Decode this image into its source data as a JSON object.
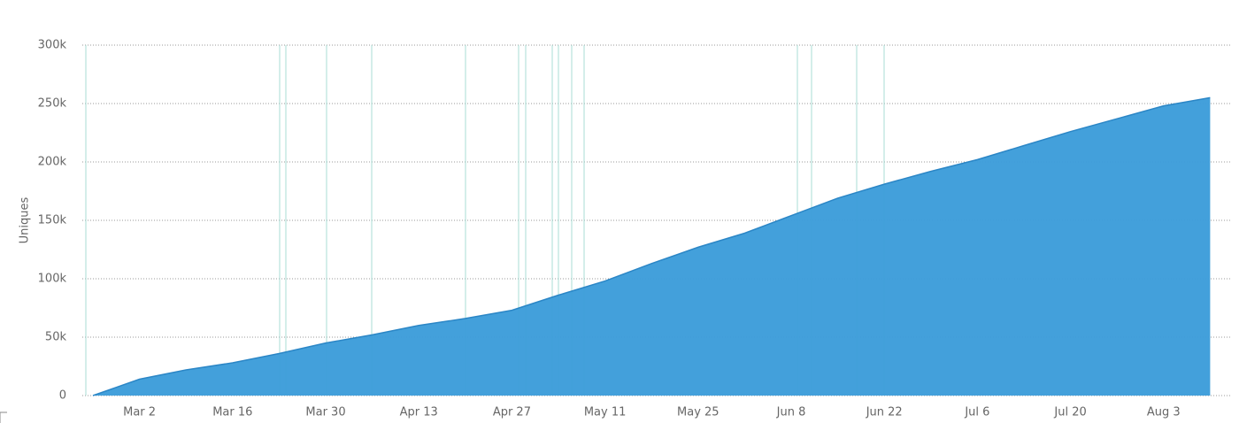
{
  "chart_data": {
    "type": "area",
    "y_label": "Uniques",
    "categories": [
      null,
      "Mar 2",
      null,
      "Mar 16",
      null,
      "Mar 30",
      null,
      "Apr 13",
      null,
      "Apr 27",
      null,
      "May 11",
      null,
      "May 25",
      null,
      "Jun 8",
      null,
      "Jun 22",
      null,
      "Jul 6",
      null,
      "Jul 20",
      null,
      "Aug 3",
      null
    ],
    "values": [
      0,
      14000,
      22000,
      28000,
      36000,
      45000,
      52000,
      60000,
      66000,
      73000,
      86000,
      98000,
      113000,
      127000,
      139000,
      154000,
      169000,
      181000,
      192000,
      202000,
      214000,
      226000,
      237000,
      248000,
      255000
    ],
    "color": "#3d9dda",
    "ylim": [
      0,
      300000
    ],
    "yticks": [
      0,
      {
        "value": 50000,
        "label": "50k"
      },
      {
        "value": 100000,
        "label": "100k"
      },
      {
        "value": 150000,
        "label": "150k"
      },
      {
        "value": 200000,
        "label": "200k"
      },
      {
        "value": 250000,
        "label": "250k"
      },
      {
        "value": 300000,
        "label": "300k"
      }
    ],
    "grid": true
  }
}
